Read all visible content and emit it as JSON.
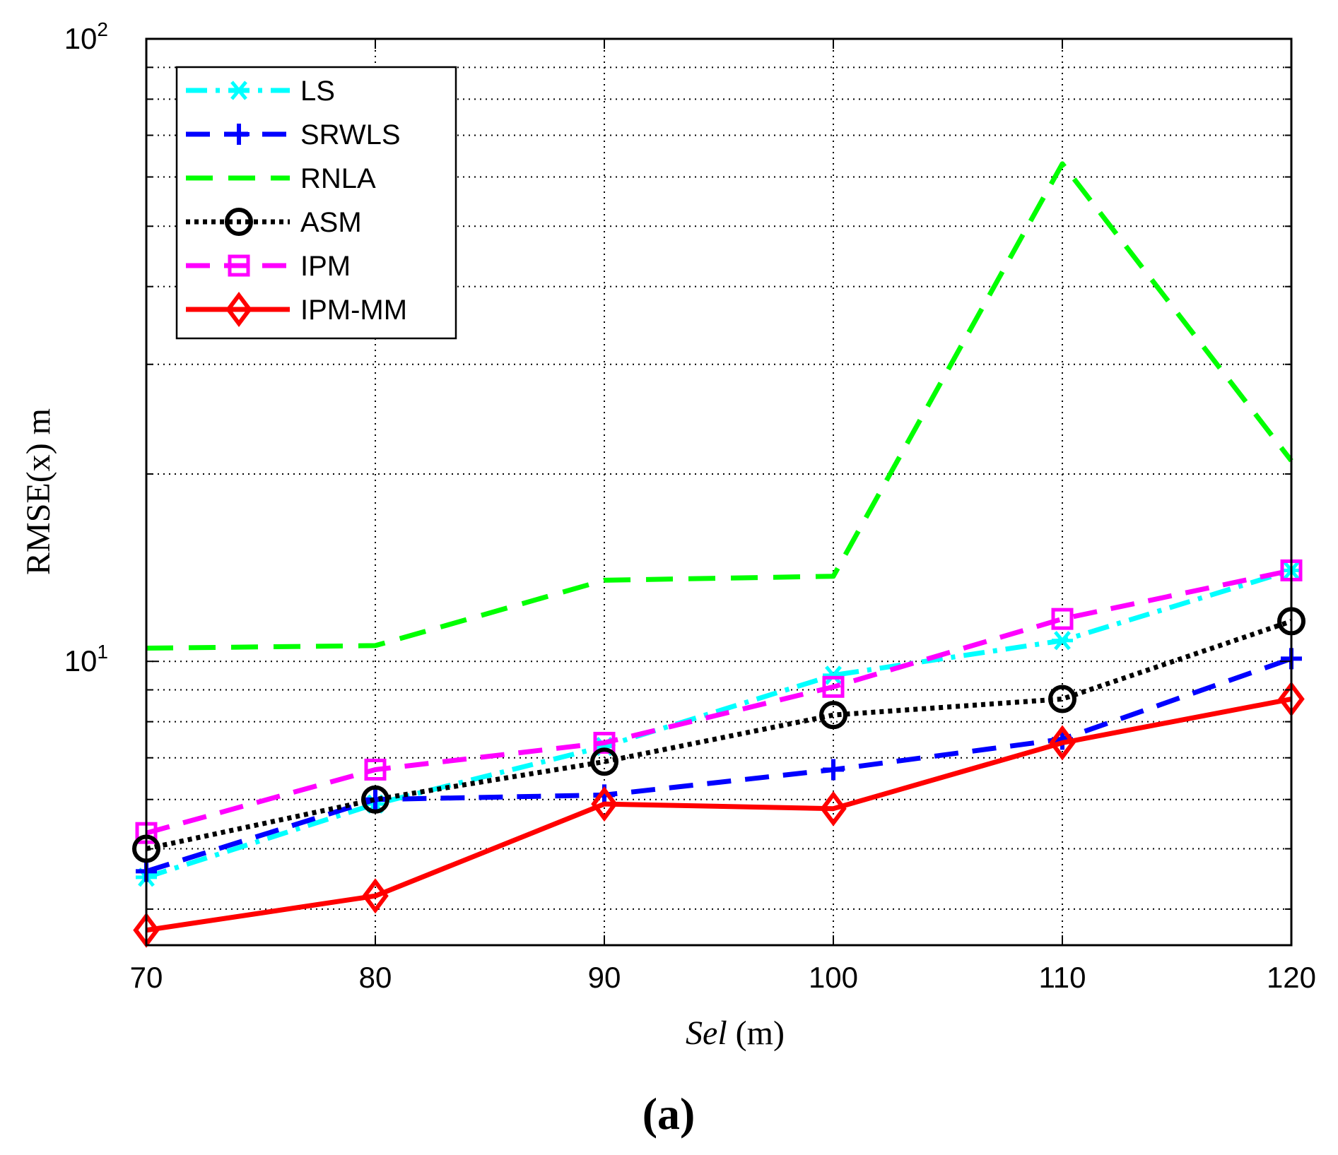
{
  "chart_data": {
    "type": "line",
    "yscale": "log",
    "x": [
      70,
      80,
      90,
      100,
      110,
      120
    ],
    "xlim": [
      70,
      120
    ],
    "ylim": [
      3.5,
      100
    ],
    "x_ticks": [
      "70",
      "80",
      "90",
      "100",
      "110",
      "120"
    ],
    "y_ticks": [
      {
        "value": 10,
        "base": "10",
        "exp": "1"
      },
      {
        "value": 100,
        "base": "10",
        "exp": "2"
      }
    ],
    "xlabel": {
      "italic": "Sel",
      "rest": " (m)"
    },
    "ylabel": "RMSE(x) m",
    "grid": "dotted",
    "legend_position": "top-left",
    "caption": "(a)",
    "series": [
      {
        "name": "LS",
        "color": "#00FFFF",
        "dash": "dashdot",
        "marker": "asterisk",
        "values": [
          4.5,
          5.9,
          7.3,
          9.5,
          10.8,
          14.0
        ]
      },
      {
        "name": "SRWLS",
        "color": "#0000FF",
        "dash": "dash",
        "marker": "plus",
        "values": [
          4.6,
          6.0,
          6.1,
          6.7,
          7.5,
          10.1
        ]
      },
      {
        "name": "RNLA",
        "color": "#00FF00",
        "dash": "longdash",
        "marker": "none",
        "values": [
          10.5,
          10.6,
          13.5,
          13.7,
          63.0,
          21.0
        ]
      },
      {
        "name": "ASM",
        "color": "#000000",
        "dash": "dot",
        "marker": "circle",
        "values": [
          5.0,
          6.0,
          6.9,
          8.2,
          8.7,
          11.6
        ]
      },
      {
        "name": "IPM",
        "color": "#FF00FF",
        "dash": "dash",
        "marker": "square",
        "values": [
          5.3,
          6.7,
          7.4,
          9.1,
          11.7,
          14.0
        ]
      },
      {
        "name": "IPM-MM",
        "color": "#FF0000",
        "dash": "solid",
        "marker": "diamond",
        "values": [
          3.7,
          4.2,
          5.9,
          5.8,
          7.4,
          8.7
        ]
      }
    ]
  }
}
